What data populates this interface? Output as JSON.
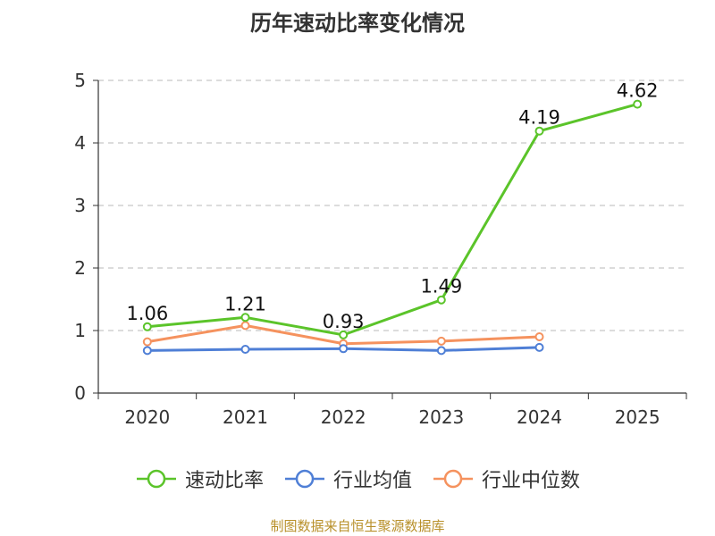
{
  "chart_data": {
    "type": "line",
    "title": "历年速动比率变化情况",
    "categories": [
      "2020",
      "2021",
      "2022",
      "2023",
      "2024",
      "2025"
    ],
    "y_ticks": [
      "0",
      "1",
      "2",
      "3",
      "4",
      "5"
    ],
    "ylim": [
      0,
      5
    ],
    "grid": true,
    "grid_style": "dashed",
    "legend_position": "bottom",
    "series": [
      {
        "name": "速动比率",
        "color": "#5bc42a",
        "values": [
          1.06,
          1.21,
          0.93,
          1.49,
          4.19,
          4.62
        ],
        "labels": [
          "1.06",
          "1.21",
          "0.93",
          "1.49",
          "4.19",
          "4.62"
        ]
      },
      {
        "name": "行业均值",
        "color": "#4f7fd6",
        "values": [
          0.68,
          0.7,
          0.71,
          0.68,
          0.73,
          null
        ]
      },
      {
        "name": "行业中位数",
        "color": "#f5925e",
        "values": [
          0.82,
          1.08,
          0.79,
          0.83,
          0.9,
          null
        ]
      }
    ],
    "source": "制图数据来自恒生聚源数据库"
  }
}
